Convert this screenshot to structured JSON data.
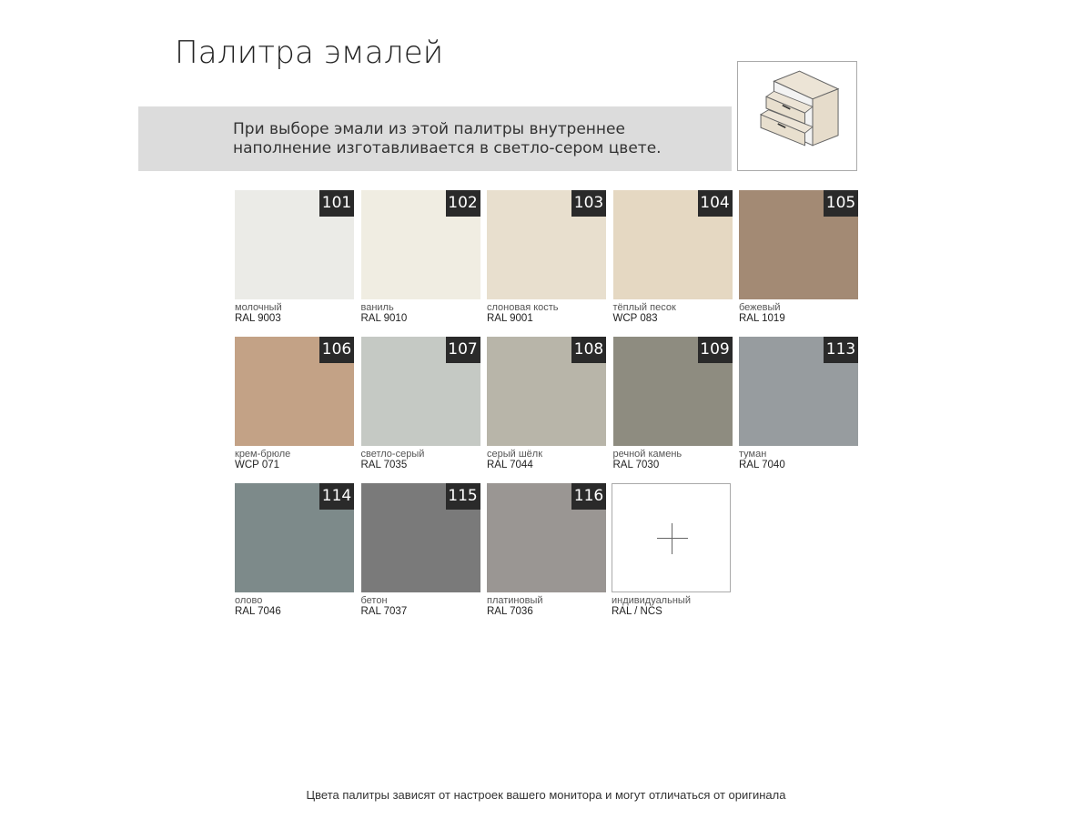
{
  "title": "Палитра эмалей",
  "note_line1": "При выборе эмали из этой палитры внутреннее",
  "note_line2": "наполнение изготавливается в светло-сером цвете.",
  "illustration": "drawer-cabinet-icon",
  "swatches": [
    {
      "num": "101",
      "name": "молочный",
      "code": "RAL 9003",
      "color": "#ebebe7"
    },
    {
      "num": "102",
      "name": "ваниль",
      "code": "RAL 9010",
      "color": "#f0ede2"
    },
    {
      "num": "103",
      "name": "слоновая кость",
      "code": "RAL 9001",
      "color": "#e8dfce"
    },
    {
      "num": "104",
      "name": "тёплый песок",
      "code": "WCP 083",
      "color": "#e5d8c2"
    },
    {
      "num": "105",
      "name": "бежевый",
      "code": "RAL 1019",
      "color": "#a38a74"
    },
    {
      "num": "106",
      "name": "крем-брюле",
      "code": "WCP 071",
      "color": "#c3a286"
    },
    {
      "num": "107",
      "name": "светло-серый",
      "code": "RAL 7035",
      "color": "#c5c9c4"
    },
    {
      "num": "108",
      "name": "серый шёлк",
      "code": "RAL 7044",
      "color": "#b8b5a9"
    },
    {
      "num": "109",
      "name": "речной камень",
      "code": "RAL 7030",
      "color": "#8e8c80"
    },
    {
      "num": "113",
      "name": "туман",
      "code": "RAL 7040",
      "color": "#979c9f"
    },
    {
      "num": "114",
      "name": "олово",
      "code": "RAL 7046",
      "color": "#7d8a8a"
    },
    {
      "num": "115",
      "name": "бетон",
      "code": "RAL 7037",
      "color": "#7a7a7a"
    },
    {
      "num": "116",
      "name": "платиновый",
      "code": "RAL 7036",
      "color": "#9a9693"
    }
  ],
  "custom": {
    "name": "индивидуальный",
    "code": "RAL / NCS",
    "icon": "plus-icon"
  },
  "footer": "Цвета палитры зависят от настроек вашего монитора и могут отличаться от оригинала"
}
